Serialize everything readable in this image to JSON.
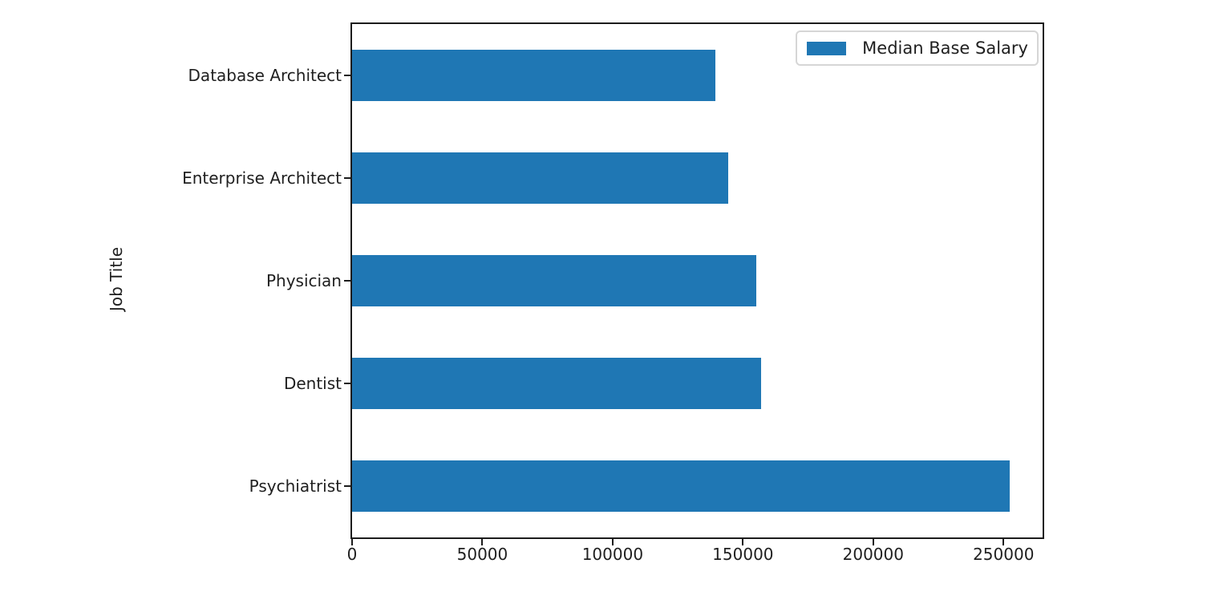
{
  "chart_data": {
    "type": "bar",
    "orientation": "horizontal",
    "title": "",
    "xlabel": "",
    "ylabel": "Job Title",
    "categories": [
      "Database Architect",
      "Enterprise Architect",
      "Physician",
      "Dentist",
      "Psychiatrist"
    ],
    "series": [
      {
        "name": "Median Base Salary",
        "values": [
          139500,
          144500,
          155000,
          157000,
          252500
        ]
      }
    ],
    "xticks": [
      0,
      50000,
      100000,
      150000,
      200000,
      250000
    ],
    "xlim": [
      0,
      265000
    ],
    "bar_height_fraction": 0.5,
    "grid": false,
    "legend": {
      "position": "upper right",
      "labels": [
        "Median Base Salary"
      ]
    }
  },
  "colors": {
    "bar": "#1f77b4",
    "axis": "#1c1c1c",
    "text": "#1f1f1f",
    "legend_border": "#d6d6d6",
    "background": "#ffffff"
  }
}
